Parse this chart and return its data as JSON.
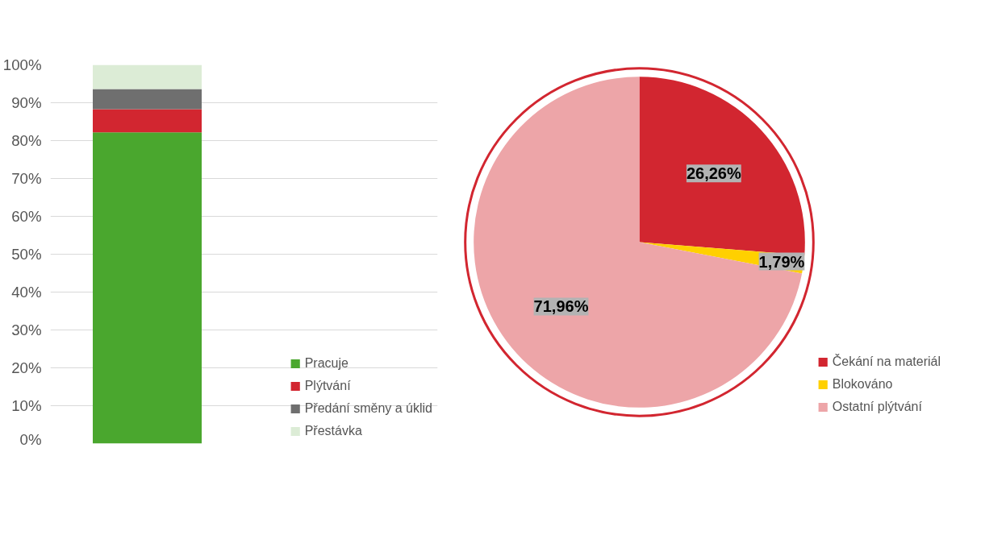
{
  "chart_data": [
    {
      "type": "bar",
      "stacked": true,
      "categories": [
        null
      ],
      "series": [
        {
          "name": "Pracuje",
          "color": "#4aa72e",
          "values": [
            82.2
          ]
        },
        {
          "name": "Plýtvání",
          "color": "#d22630",
          "values": [
            6.1
          ]
        },
        {
          "name": "Předání směny a úklid",
          "color": "#6f6f6f",
          "values": [
            5.3
          ]
        },
        {
          "name": "Přestávka",
          "color": "#dcecd6",
          "values": [
            6.4
          ]
        }
      ],
      "ylim": [
        0,
        100
      ],
      "yticks": [
        {
          "value": 0,
          "label": "0%"
        },
        {
          "value": 10,
          "label": "10%"
        },
        {
          "value": 20,
          "label": "20%"
        },
        {
          "value": 30,
          "label": "30%"
        },
        {
          "value": 40,
          "label": "40%"
        },
        {
          "value": 50,
          "label": "50%"
        },
        {
          "value": 60,
          "label": "60%"
        },
        {
          "value": 70,
          "label": "70%"
        },
        {
          "value": 80,
          "label": "80%"
        },
        {
          "value": 90,
          "label": "90%"
        },
        {
          "value": 100,
          "label": "100%"
        }
      ],
      "grid": "y",
      "legend": "bottom right"
    },
    {
      "type": "pie",
      "categories": [
        "Čekání na materiál",
        "Blokováno",
        "Ostatní plýtvání"
      ],
      "values": [
        26.26,
        1.79,
        71.96
      ],
      "colors": [
        "#d22630",
        "#ffd000",
        "#eda5a8"
      ],
      "value_labels": [
        "26,26%",
        "1,79%",
        "71,96%"
      ],
      "legend": "bottom right"
    }
  ]
}
